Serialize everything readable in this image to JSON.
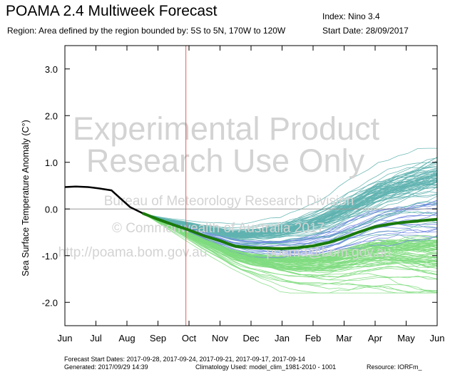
{
  "header": {
    "title": "POAMA 2.4 Multiweek Forecast",
    "index": "Index: Nino 3.4",
    "region": "Region: Area defined by the region bounded by: 5S to 5N, 170W to 120W",
    "start_date": "Start Date: 28/09/2017"
  },
  "watermark": {
    "line1": "Experimental Product",
    "line2": "Research Use Only",
    "line3": "Bureau of Meteorology Research Division",
    "line4": "© Commonwealth of Australia 2017",
    "line5": "http://poama.bom.gov.au",
    "line6": "poama@bom.gov.au"
  },
  "footer": {
    "forecast_start_dates": "Forecast Start Dates: 2017-09-28, 2017-09-24, 2017-09-21, 2017-09-17, 2017-09-14",
    "generated": "Generated: 2017/09/29 14:39",
    "climatology": "Climatology Used: model_clim_1981-2010 - 1001",
    "resource": "Resource: IORFm_"
  },
  "colors": {
    "observed": "#000000",
    "ensemble_mean": "#1a7a0a",
    "member_teal": "#5fb3b0",
    "member_blue": "#6f86e0",
    "member_green": "#7fdc7f",
    "start_line": "#e06060",
    "zero_line": "#999999"
  },
  "chart_data": {
    "type": "line",
    "ylabel": "Sea Surface Temperature Anomaly (C°)",
    "xlabel": "",
    "categories": [
      "Jun",
      "Jul",
      "Aug",
      "Sep",
      "Oct",
      "Nov",
      "Dec",
      "Jan",
      "Feb",
      "Mar",
      "Apr",
      "May",
      "Jun"
    ],
    "ylim": [
      -2.5,
      3.5
    ],
    "yticks": [
      -2.0,
      -1.0,
      0.0,
      1.0,
      2.0,
      3.0
    ],
    "ytick_labels": [
      "-2.0",
      "-1.0",
      "0.0",
      "1.0",
      "2.0",
      "3.0"
    ],
    "forecast_start_x": 3.9,
    "grid": false,
    "series": [
      {
        "name": "",
        "role": "observed",
        "x": [
          0,
          0.35,
          0.75,
          1.1,
          1.5,
          1.8,
          2.1,
          2.5
        ],
        "values": [
          0.47,
          0.48,
          0.47,
          0.44,
          0.4,
          0.22,
          0.04,
          -0.09
        ]
      },
      {
        "name": "",
        "role": "ensemble_mean",
        "x": [
          2.5,
          3.0,
          3.5,
          4.0,
          4.5,
          5.0,
          5.5,
          6.0,
          6.5,
          7.0,
          7.5,
          8.0,
          8.5,
          9.0,
          9.5,
          10.0,
          10.5,
          11.0,
          11.5,
          12.0
        ],
        "values": [
          -0.09,
          -0.22,
          -0.34,
          -0.45,
          -0.58,
          -0.68,
          -0.8,
          -0.83,
          -0.84,
          -0.85,
          -0.83,
          -0.79,
          -0.72,
          -0.61,
          -0.49,
          -0.38,
          -0.32,
          -0.28,
          -0.25,
          -0.22
        ]
      }
    ],
    "ensemble_members": {
      "count": 165,
      "start_x": 2.5,
      "start_value": -0.09,
      "end_x": 12.0,
      "end_range": [
        -1.8,
        1.3
      ]
    }
  }
}
